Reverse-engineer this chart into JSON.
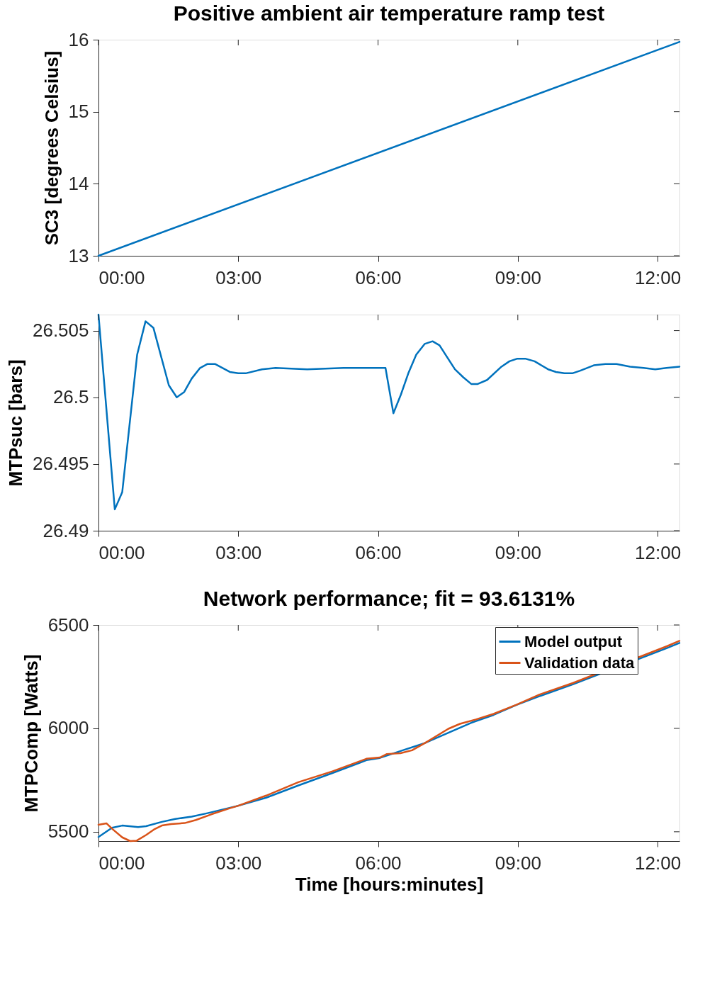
{
  "chart_data": [
    {
      "type": "line",
      "title": "Positive ambient air temperature ramp test",
      "ylabel": "SC3 [degrees Celsius]",
      "xlim": [
        0,
        12.47
      ],
      "xticks": [
        {
          "value": 0,
          "label": "00:00"
        },
        {
          "value": 3,
          "label": "03:00"
        },
        {
          "value": 6,
          "label": "06:00"
        },
        {
          "value": 9,
          "label": "09:00"
        },
        {
          "value": 12,
          "label": "12:00"
        }
      ],
      "ylim": [
        13,
        16
      ],
      "yticks": [
        13,
        14,
        15,
        16
      ],
      "grid": false,
      "legend": false,
      "series": [
        {
          "color": "#0072bd",
          "x": [
            0,
            12.47
          ],
          "values": [
            13,
            15.97
          ]
        }
      ]
    },
    {
      "type": "line",
      "ylabel": "MTPsuc [bars]",
      "xlim": [
        0,
        12.47
      ],
      "xticks": [
        {
          "value": 0,
          "label": "00:00"
        },
        {
          "value": 3,
          "label": "03:00"
        },
        {
          "value": 6,
          "label": "06:00"
        },
        {
          "value": 9,
          "label": "09:00"
        },
        {
          "value": 12,
          "label": "12:00"
        }
      ],
      "ylim": [
        26.49,
        26.5062
      ],
      "yticks": [
        26.49,
        26.495,
        26.5,
        26.505
      ],
      "grid": false,
      "legend": false,
      "series": [
        {
          "color": "#0072bd",
          "x": [
            0,
            0.35,
            0.51,
            0.83,
            1.01,
            1.18,
            1.51,
            1.68,
            1.84,
            2.0,
            2.18,
            2.34,
            2.5,
            2.82,
            3.0,
            3.16,
            3.51,
            3.8,
            4.48,
            5.26,
            6.16,
            6.33,
            6.49,
            6.65,
            6.82,
            7.0,
            7.17,
            7.32,
            7.65,
            7.83,
            8.0,
            8.14,
            8.34,
            8.65,
            8.82,
            8.99,
            9.16,
            9.36,
            9.65,
            9.82,
            10.0,
            10.17,
            10.34,
            10.63,
            10.88,
            11.12,
            11.41,
            11.7,
            11.95,
            12.19,
            12.47
          ],
          "values": [
            26.5062,
            26.4916,
            26.4929,
            26.5032,
            26.5057,
            26.5052,
            26.5009,
            26.5,
            26.5004,
            26.5014,
            26.5022,
            26.5025,
            26.5025,
            26.5019,
            26.5018,
            26.5018,
            26.5021,
            26.5022,
            26.5021,
            26.5022,
            26.5022,
            26.4988,
            26.5002,
            26.5018,
            26.5032,
            26.504,
            26.5042,
            26.5039,
            26.5021,
            26.5015,
            26.501,
            26.501,
            26.5013,
            26.5023,
            26.5027,
            26.5029,
            26.5029,
            26.5027,
            26.5021,
            26.5019,
            26.5018,
            26.5018,
            26.502,
            26.5024,
            26.5025,
            26.5025,
            26.5023,
            26.5022,
            26.5021,
            26.5022,
            26.5023
          ]
        }
      ]
    },
    {
      "type": "line",
      "title": "Network performance; fit = 93.6131%",
      "xlabel": "Time [hours:minutes]",
      "ylabel": "MTPComp [Watts]",
      "xlim": [
        0,
        12.47
      ],
      "xticks": [
        {
          "value": 0,
          "label": "00:00"
        },
        {
          "value": 3,
          "label": "03:00"
        },
        {
          "value": 6,
          "label": "06:00"
        },
        {
          "value": 9,
          "label": "09:00"
        },
        {
          "value": 12,
          "label": "12:00"
        }
      ],
      "ylim": [
        5455,
        6500
      ],
      "yticks": [
        5500,
        6000,
        6500
      ],
      "grid": false,
      "legend": "top right",
      "series": [
        {
          "name": "Model output",
          "color": "#0072bd",
          "x": [
            0,
            0.29,
            0.51,
            0.85,
            1.02,
            1.36,
            1.65,
            2.0,
            2.34,
            3.0,
            3.6,
            4.29,
            5.02,
            5.75,
            6.04,
            6.53,
            6.97,
            7.51,
            8.0,
            8.48,
            8.97,
            9.46,
            10.19,
            12.21,
            12.47
          ],
          "values": [
            5475,
            5519,
            5530,
            5523,
            5527,
            5548,
            5562,
            5573,
            5590,
            5626,
            5665,
            5724,
            5784,
            5846,
            5857,
            5894,
            5926,
            5979,
            6027,
            6065,
            6113,
            6155,
            6214,
            6389,
            6413
          ]
        },
        {
          "name": "Validation data",
          "color": "#d95319",
          "x": [
            0,
            0.17,
            0.31,
            0.51,
            0.68,
            0.82,
            1.02,
            1.19,
            1.36,
            1.56,
            1.85,
            2.09,
            2.43,
            2.82,
            3.0,
            3.6,
            4.29,
            5.02,
            5.75,
            6.04,
            6.19,
            6.48,
            6.73,
            7.02,
            7.51,
            7.76,
            8.1,
            8.48,
            8.97,
            9.46,
            10.19,
            12.21,
            12.47
          ],
          "values": [
            5534,
            5541,
            5511,
            5473,
            5455,
            5457,
            5484,
            5511,
            5530,
            5537,
            5542,
            5557,
            5585,
            5614,
            5626,
            5675,
            5740,
            5792,
            5853,
            5859,
            5876,
            5880,
            5894,
            5931,
            5998,
            6022,
            6043,
            6070,
            6114,
            6163,
            6220,
            6398,
            6423
          ]
        }
      ]
    }
  ]
}
